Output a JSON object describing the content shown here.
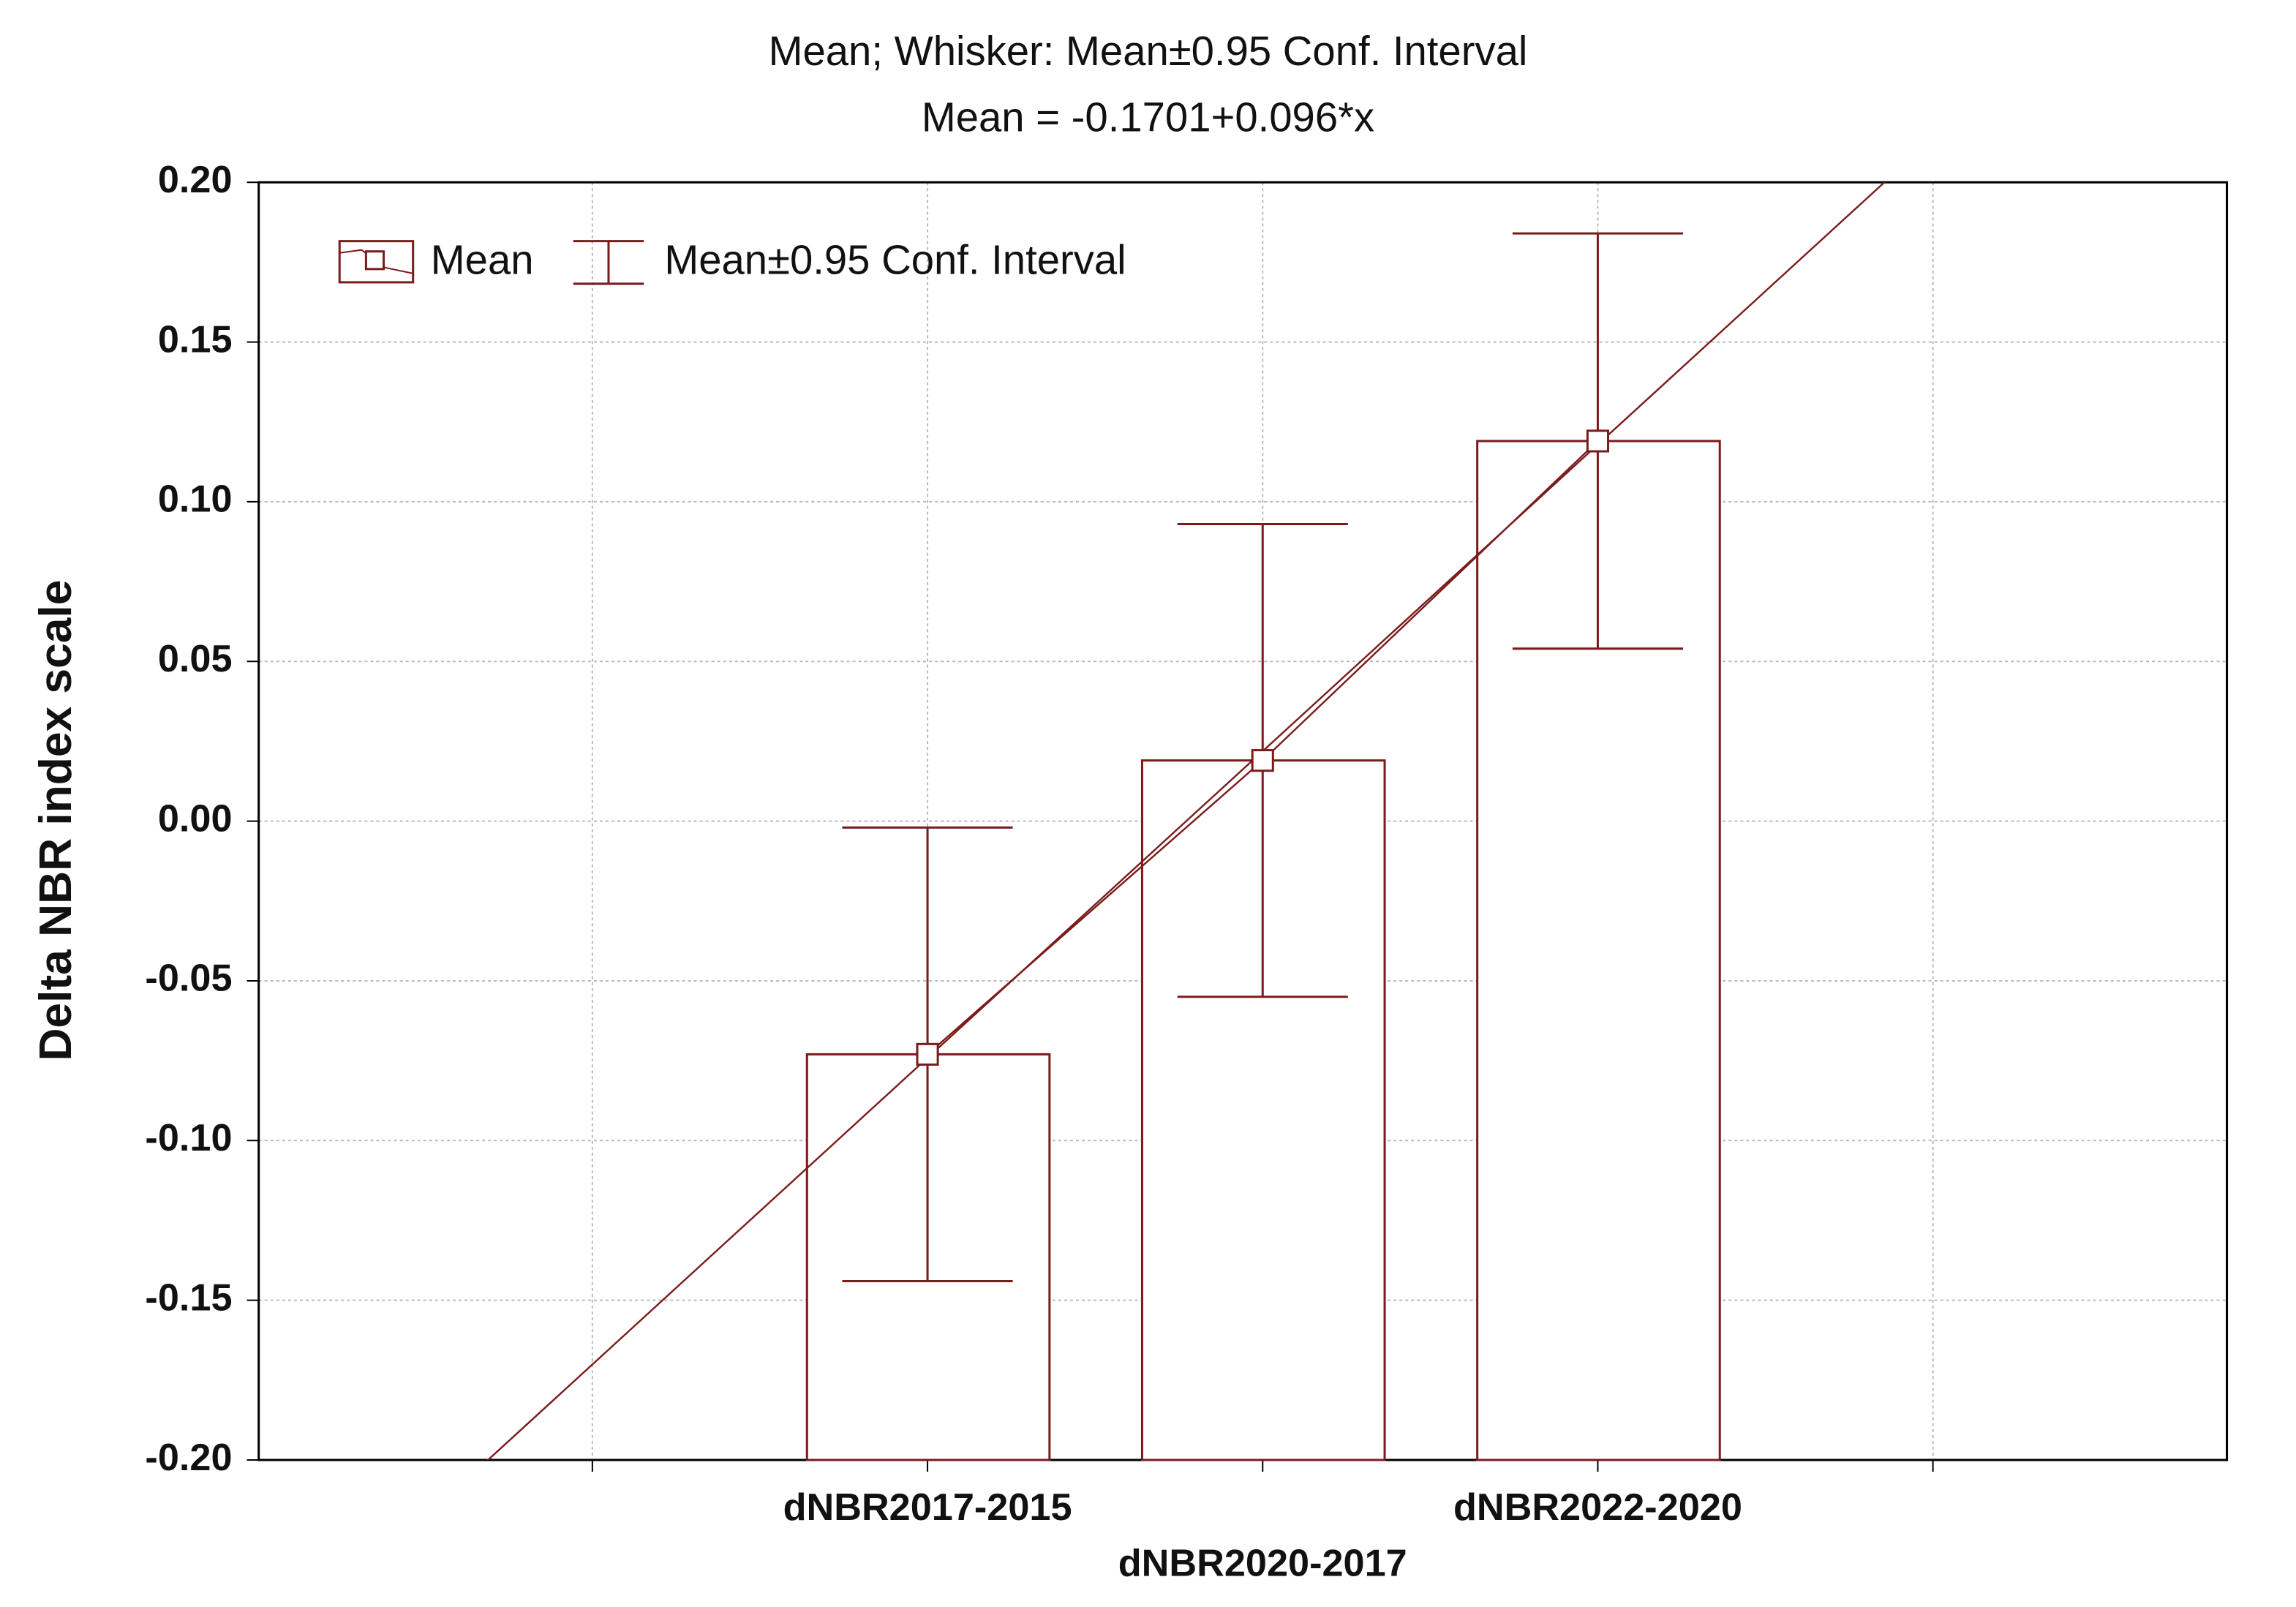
{
  "chart_data": {
    "type": "bar",
    "title": "Mean; Whisker: Mean±0.95 Conf. Interval",
    "subtitle": "Mean = -0.1701+0.096*x",
    "y_label": "Delta NBR index scale",
    "categories": [
      "dNBR2017-2015",
      "dNBR2020-2017",
      "dNBR2022-2020"
    ],
    "values": [
      -0.073,
      0.019,
      0.119
    ],
    "errors": [
      0.071,
      0.074,
      0.065
    ],
    "trend": {
      "intercept": -0.1701,
      "slope": 0.096
    },
    "color": "#7a1c1c",
    "legend": [
      "Mean",
      "Mean±0.95 Conf. Interval"
    ],
    "legend_position": "upper left",
    "ylim": [
      -0.2,
      0.2
    ],
    "yticks": [
      {
        "value": 0.2,
        "label": "0.20"
      },
      0.15,
      {
        "value": 0.1,
        "label": "0.10"
      },
      0.05,
      {
        "value": 0,
        "label": "0.00"
      },
      -0.05,
      {
        "value": -0.1,
        "label": "-0.10"
      },
      -0.15,
      {
        "value": -0.2,
        "label": "-0.20"
      }
    ],
    "grid": true
  }
}
